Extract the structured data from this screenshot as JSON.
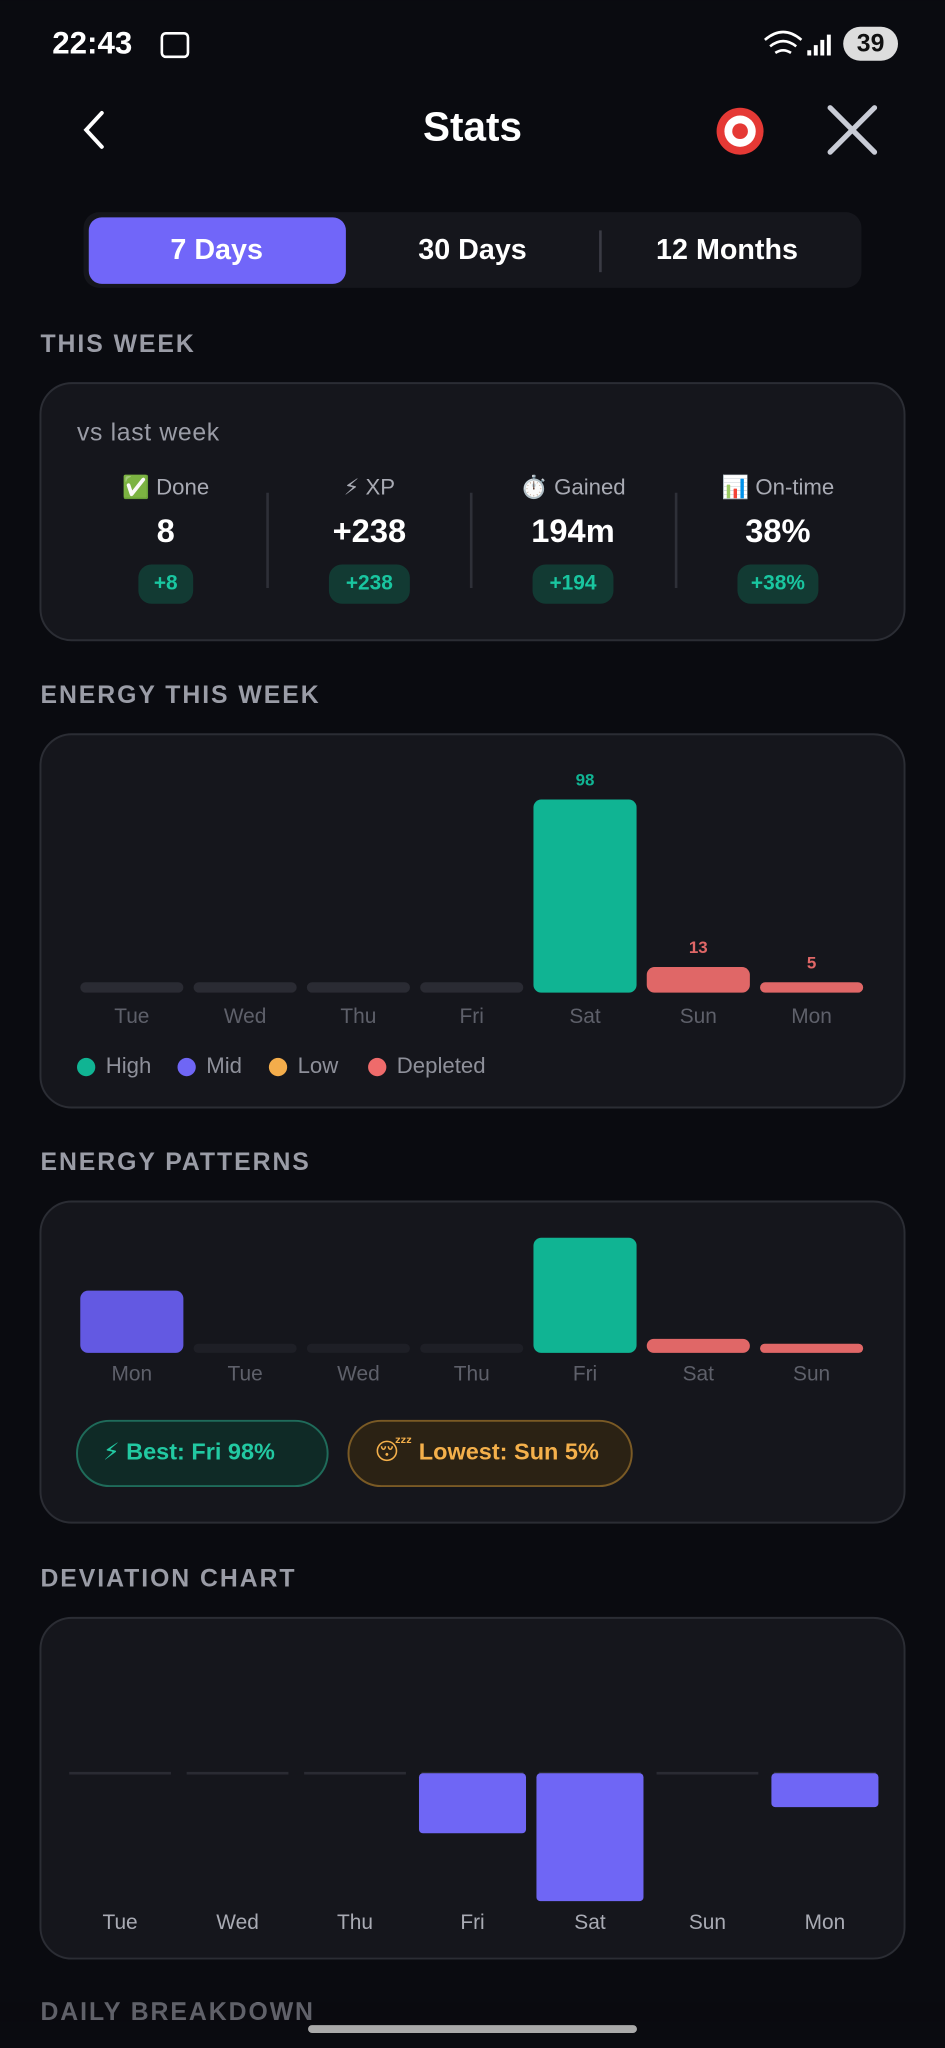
{
  "status_bar": {
    "time": "22:43",
    "battery": "39"
  },
  "header": {
    "title": "Stats"
  },
  "tabs": {
    "items": [
      "7 Days",
      "30 Days",
      "12 Months"
    ],
    "active": 0
  },
  "this_week": {
    "section": "THIS WEEK",
    "subtitle": "vs last week",
    "stats": [
      {
        "label": "✅ Done",
        "value": "8",
        "delta": "+8"
      },
      {
        "label": "⚡ XP",
        "value": "+238",
        "delta": "+238"
      },
      {
        "label": "⏱️ Gained",
        "value": "194m",
        "delta": "+194"
      },
      {
        "label": "📊 On-time",
        "value": "38%",
        "delta": "+38%"
      }
    ]
  },
  "chart_data": [
    {
      "type": "bar",
      "title": "ENERGY THIS WEEK",
      "categories": [
        "Tue",
        "Wed",
        "Thu",
        "Fri",
        "Sat",
        "Sun",
        "Mon"
      ],
      "values": [
        0,
        0,
        0,
        0,
        98,
        13,
        5
      ],
      "colors": [
        "#2a2b33",
        "#2a2b33",
        "#2a2b33",
        "#2a2b33",
        "#10b493",
        "#e06767",
        "#e06767"
      ],
      "ylim": [
        0,
        100
      ],
      "data_labels": true,
      "legend": [
        {
          "name": "High",
          "color": "#10b493"
        },
        {
          "name": "Mid",
          "color": "#6f66f5"
        },
        {
          "name": "Low",
          "color": "#f4ad4b"
        },
        {
          "name": "Depleted",
          "color": "#ef6b6b"
        }
      ]
    },
    {
      "type": "bar",
      "title": "ENERGY PATTERNS",
      "categories": [
        "Mon",
        "Tue",
        "Wed",
        "Thu",
        "Fri",
        "Sat",
        "Sun"
      ],
      "values": [
        53,
        0,
        0,
        0,
        98,
        12,
        5
      ],
      "colors": [
        "#6359e2",
        "#1e1f26",
        "#1e1f26",
        "#1e1f26",
        "#10b493",
        "#e06767",
        "#e06767"
      ],
      "ylim": [
        0,
        100
      ],
      "badges": [
        "⚡  Best: Fri  98%",
        "😴  Lowest: Sun  5%"
      ]
    },
    {
      "type": "bar",
      "title": "DEVIATION CHART",
      "categories": [
        "Tue",
        "Wed",
        "Thu",
        "Fri",
        "Sat",
        "Sun",
        "Mon"
      ],
      "values": [
        0,
        0,
        0,
        -46,
        -98,
        0,
        -26
      ],
      "color": "#6f66f5",
      "ylim": [
        -100,
        100
      ]
    }
  ],
  "next_section": "DAILY BREAKDOWN"
}
